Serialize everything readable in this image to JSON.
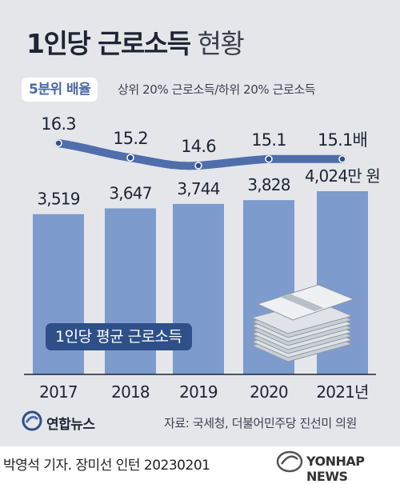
{
  "title": {
    "bold": "1인당 근로소득",
    "light": "현황"
  },
  "badge": "5분위 배율",
  "subtitle": "상위 20% 근로소득/하위 20% 근로소득",
  "chart_data": {
    "type": "bar",
    "categories": [
      "2017",
      "2018",
      "2019",
      "2020",
      "2021년"
    ],
    "series": [
      {
        "name": "1인당 평균 근로소득",
        "type": "bar",
        "values": [
          3519,
          3647,
          3744,
          3828,
          4024
        ],
        "labels": [
          "3,519",
          "3,647",
          "3,744",
          "3,828",
          "4,024만 원"
        ]
      },
      {
        "name": "5분위 배율",
        "type": "line",
        "values": [
          16.3,
          15.2,
          14.6,
          15.1,
          15.1
        ],
        "labels": [
          "16.3",
          "15.2",
          "14.6",
          "15.1",
          "15.1배"
        ]
      }
    ],
    "ylim_bar": [
      0,
      4400
    ],
    "ylim_line": [
      12,
      17
    ]
  },
  "legend_label": "1인당 평균 근로소득",
  "logo_text": "연합뉴스",
  "source": "자료: 국세청, 더불어민주당 진선미 의원",
  "credit": "박영석 기자. 장미선 인턴 20230201",
  "watermark": "YONHAP NEWS",
  "colors": {
    "bar": "#7d9bcc",
    "line": "#4f6eab",
    "legend_bg": "#2e4f88",
    "panel": "#e4e6ea",
    "text": "#1e2433"
  }
}
